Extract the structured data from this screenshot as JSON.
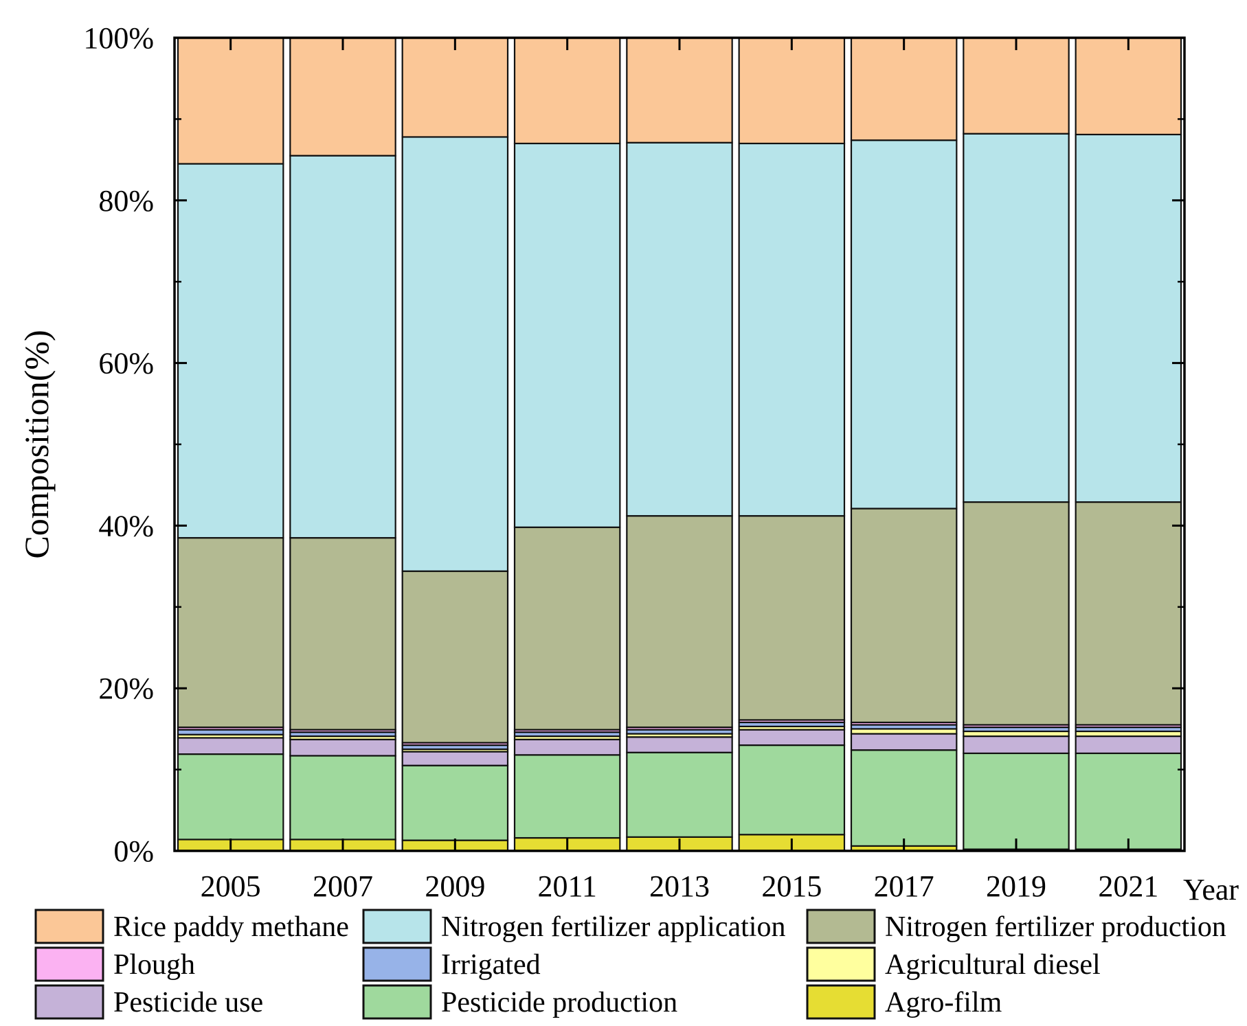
{
  "chart_data": {
    "type": "bar",
    "stacked": true,
    "ylabel": "Composition(%)",
    "xlabel": "Year",
    "ylim": [
      0,
      100
    ],
    "yticks": [
      "0%",
      "20%",
      "40%",
      "60%",
      "80%",
      "100%"
    ],
    "categories": [
      "2005",
      "2007",
      "2009",
      "2011",
      "2013",
      "2015",
      "2017",
      "2019",
      "2021"
    ],
    "series": [
      {
        "name": "Agro-film",
        "color": "#e6dd33",
        "values": [
          1.4,
          1.4,
          1.3,
          1.6,
          1.7,
          2.0,
          0.6,
          0.2,
          0.2
        ]
      },
      {
        "name": "Pesticide production",
        "color": "#9fd99d",
        "values": [
          10.5,
          10.3,
          9.2,
          10.2,
          10.4,
          11.0,
          11.8,
          11.8,
          11.8
        ]
      },
      {
        "name": "Pesticide use",
        "color": "#c5b2d8",
        "values": [
          2.0,
          2.0,
          1.7,
          1.9,
          1.9,
          1.9,
          2.0,
          2.1,
          2.1
        ]
      },
      {
        "name": "Agricultural diesel",
        "color": "#ffff9e",
        "values": [
          0.4,
          0.4,
          0.3,
          0.4,
          0.4,
          0.4,
          0.6,
          0.6,
          0.6
        ]
      },
      {
        "name": "Irrigated",
        "color": "#97b3e8",
        "values": [
          0.6,
          0.5,
          0.5,
          0.5,
          0.5,
          0.5,
          0.5,
          0.5,
          0.5
        ]
      },
      {
        "name": "Plough",
        "color": "#fbb2f2",
        "values": [
          0.3,
          0.3,
          0.3,
          0.3,
          0.3,
          0.3,
          0.3,
          0.3,
          0.3
        ]
      },
      {
        "name": "Nitrogen fertilizer production",
        "color": "#b3ba92",
        "values": [
          23.3,
          23.6,
          21.1,
          24.9,
          26.0,
          25.1,
          26.3,
          27.4,
          27.4
        ]
      },
      {
        "name": "Nitrogen fertilizer application",
        "color": "#b7e4ea",
        "values": [
          46.0,
          47.0,
          53.4,
          47.2,
          45.9,
          45.8,
          45.3,
          45.3,
          45.2
        ]
      },
      {
        "name": "Rice paddy methane",
        "color": "#fbc797",
        "values": [
          15.5,
          14.5,
          12.2,
          13.0,
          12.9,
          13.0,
          12.6,
          11.8,
          11.9
        ]
      }
    ],
    "legend": {
      "position": "bottom",
      "order": [
        "Rice paddy methane",
        "Nitrogen fertilizer application",
        "Nitrogen fertilizer production",
        "Plough",
        "Irrigated",
        "Agricultural diesel",
        "Pesticide use",
        "Pesticide production",
        "Agro-film"
      ]
    },
    "grid": false
  }
}
